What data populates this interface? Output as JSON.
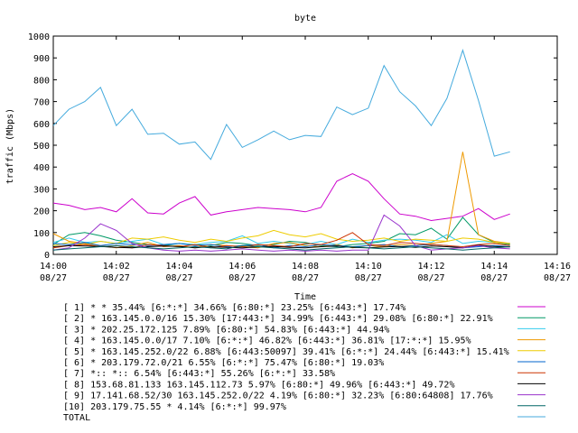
{
  "chart_data": {
    "type": "line",
    "title": "byte",
    "xlabel": "Time",
    "ylabel": "traffic (Mbps)",
    "xlim": [
      "14:00",
      "14:16"
    ],
    "ylim": [
      0,
      1000
    ],
    "grid": false,
    "legend_position": "bottom",
    "y_ticks": [
      0,
      100,
      200,
      300,
      400,
      500,
      600,
      700,
      800,
      900,
      1000
    ],
    "x_ticks": [
      {
        "time": "14:00",
        "date": "08/27"
      },
      {
        "time": "14:02",
        "date": "08/27"
      },
      {
        "time": "14:04",
        "date": "08/27"
      },
      {
        "time": "14:06",
        "date": "08/27"
      },
      {
        "time": "14:08",
        "date": "08/27"
      },
      {
        "time": "14:10",
        "date": "08/27"
      },
      {
        "time": "14:12",
        "date": "08/27"
      },
      {
        "time": "14:14",
        "date": "08/27"
      },
      {
        "time": "14:16",
        "date": "08/27"
      }
    ],
    "x": [
      "14:00:00",
      "14:00:30",
      "14:01:00",
      "14:01:30",
      "14:02:00",
      "14:02:30",
      "14:03:00",
      "14:03:30",
      "14:04:00",
      "14:04:30",
      "14:05:00",
      "14:05:30",
      "14:06:00",
      "14:06:30",
      "14:07:00",
      "14:07:30",
      "14:08:00",
      "14:08:30",
      "14:09:00",
      "14:09:30",
      "14:10:00",
      "14:10:30",
      "14:11:00",
      "14:11:30",
      "14:12:00",
      "14:12:30",
      "14:13:00",
      "14:13:30",
      "14:14:00",
      "14:14:30"
    ],
    "series": [
      {
        "name": "[ 1] * * 35.44%  [6:*:*] 34.66% [6:80:*] 23.25% [6:443:*] 17.74%",
        "color": "#cc00cc",
        "values": [
          235,
          225,
          205,
          215,
          195,
          255,
          190,
          185,
          235,
          265,
          180,
          195,
          205,
          215,
          210,
          205,
          195,
          215,
          335,
          370,
          335,
          255,
          185,
          175,
          155,
          165,
          175,
          210,
          160,
          185
        ]
      },
      {
        "name": "[ 2] * 163.145.0.0/16 15.30%  [17:443:*] 34.99% [6:443:*] 29.08% [6:80:*] 22.91%",
        "color": "#009966",
        "values": [
          45,
          90,
          100,
          85,
          65,
          55,
          45,
          40,
          50,
          45,
          40,
          55,
          50,
          40,
          45,
          60,
          55,
          40,
          35,
          45,
          50,
          60,
          95,
          90,
          120,
          70,
          170,
          90,
          55,
          45
        ]
      },
      {
        "name": "[ 3] * 202.25.172.125 7.89%  [6:80:*] 54.83% [6:443:*] 44.94%",
        "color": "#33ccee",
        "values": [
          55,
          75,
          55,
          60,
          50,
          60,
          70,
          45,
          50,
          45,
          55,
          60,
          85,
          50,
          60,
          50,
          45,
          60,
          45,
          70,
          55,
          65,
          70,
          65,
          55,
          90,
          50,
          60,
          55,
          50
        ]
      },
      {
        "name": "[ 4] * 163.145.0.0/17 7.10%  [6:*:*] 46.82% [6:443:*] 36.81% [17:*:*] 15.95%",
        "color": "#ee9900",
        "values": [
          95,
          60,
          50,
          40,
          30,
          40,
          55,
          35,
          40,
          30,
          45,
          40,
          35,
          30,
          50,
          55,
          40,
          35,
          45,
          30,
          40,
          35,
          45,
          40,
          50,
          60,
          470,
          90,
          60,
          50
        ]
      },
      {
        "name": "[ 5] * 163.145.252.0/22 6.88%  [6:443:50097] 39.41% [6:*:*] 24.44% [6:443:*] 15.41%",
        "color": "#eecc00",
        "values": [
          40,
          55,
          45,
          60,
          50,
          75,
          70,
          80,
          65,
          55,
          70,
          60,
          75,
          85,
          110,
          90,
          80,
          95,
          70,
          60,
          65,
          75,
          60,
          70,
          65,
          60,
          75,
          70,
          55,
          50
        ]
      },
      {
        "name": "[ 6] * 203.179.72.0/21 6.55%  [6:*:*] 75.47% [6:80:*] 19.03%",
        "color": "#0066cc",
        "values": [
          50,
          45,
          55,
          40,
          50,
          45,
          40,
          45,
          50,
          40,
          45,
          35,
          40,
          45,
          30,
          40,
          35,
          45,
          40,
          35,
          40,
          45,
          35,
          40,
          45,
          40,
          30,
          35,
          40,
          35
        ]
      },
      {
        "name": "[ 7] *:: *:: 6.54%  [6:443:*] 55.26% [6:*:*] 33.58%",
        "color": "#cc3300",
        "values": [
          30,
          40,
          45,
          35,
          40,
          30,
          45,
          40,
          35,
          45,
          30,
          40,
          35,
          45,
          40,
          35,
          50,
          45,
          65,
          100,
          45,
          40,
          55,
          50,
          45,
          40,
          35,
          45,
          50,
          40
        ]
      },
      {
        "name": "[ 8] 153.68.81.133 163.145.112.73 5.97%  [6:80:*] 49.96% [6:443:*] 49.72%",
        "color": "#000000",
        "values": [
          35,
          40,
          38,
          36,
          32,
          30,
          35,
          38,
          36,
          30,
          35,
          32,
          30,
          34,
          36,
          32,
          30,
          35,
          38,
          32,
          30,
          34,
          36,
          32,
          38,
          35,
          30,
          42,
          36,
          34
        ]
      },
      {
        "name": "[ 9] 17.141.68.52/30 163.145.252.0/22 4.19%  [6:80:*] 32.23% [6:80:64808] 17.76%",
        "color": "#9933cc",
        "values": [
          20,
          30,
          75,
          140,
          110,
          50,
          30,
          20,
          15,
          20,
          15,
          20,
          25,
          20,
          15,
          20,
          15,
          20,
          15,
          20,
          20,
          180,
          130,
          40,
          20,
          25,
          30,
          40,
          30,
          25
        ]
      },
      {
        "name": "[10] 203.179.75.55 * 4.14%  [6:*:*] 99.97%",
        "color": "#006666",
        "values": [
          20,
          25,
          30,
          35,
          40,
          35,
          30,
          25,
          30,
          35,
          30,
          25,
          40,
          35,
          30,
          25,
          20,
          25,
          30,
          35,
          30,
          25,
          30,
          35,
          30,
          25,
          20,
          25,
          30,
          35
        ]
      },
      {
        "name": "TOTAL",
        "color": "#44aadd",
        "values": [
          590,
          665,
          700,
          765,
          590,
          665,
          550,
          555,
          505,
          515,
          435,
          595,
          490,
          525,
          565,
          525,
          545,
          540,
          675,
          640,
          670,
          865,
          745,
          680,
          590,
          715,
          935,
          705,
          450,
          470
        ]
      }
    ]
  }
}
